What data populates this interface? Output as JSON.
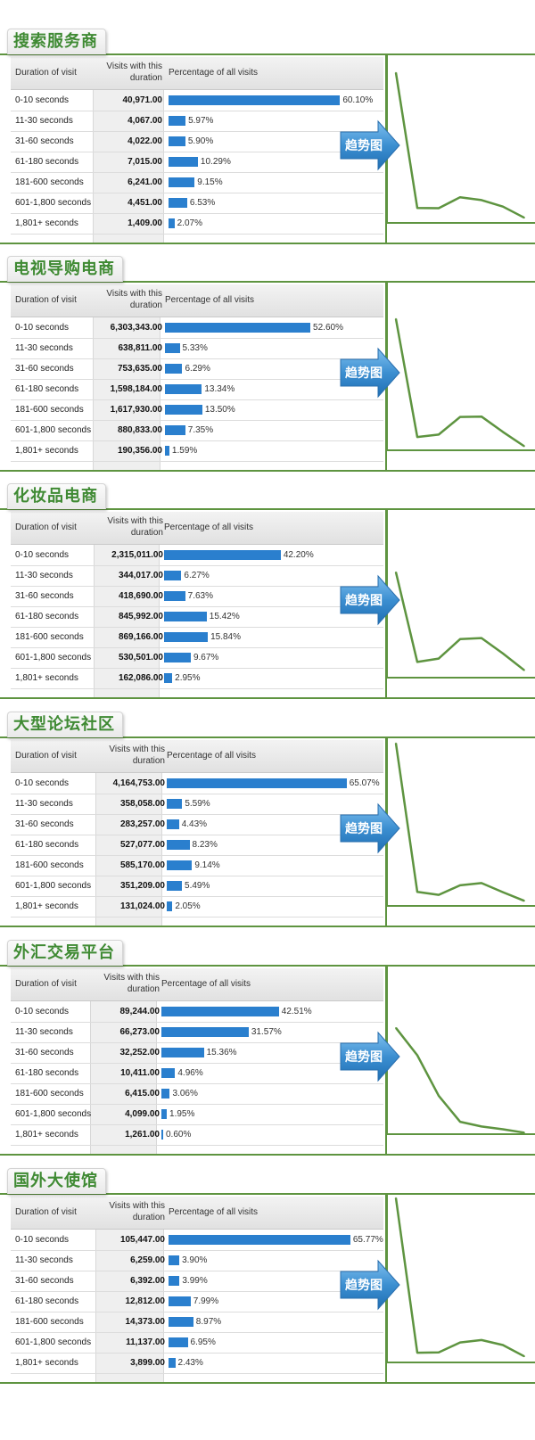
{
  "header_labels": {
    "duration": "Duration of visit",
    "visits_line1": "Visits with this",
    "visits_line2": "duration",
    "percentage": "Percentage of all visits"
  },
  "trend_label": "趋势图",
  "colors": {
    "bar": "#2a7fce",
    "line": "#5e9440",
    "title": "#3f8a33",
    "arrow": "#3c8fd1"
  },
  "chart_data": [
    {
      "type": "bar",
      "title": "搜索服务商",
      "categories": [
        "0-10 seconds",
        "11-30 seconds",
        "31-60 seconds",
        "61-180 seconds",
        "181-600 seconds",
        "601-1,800 seconds",
        "1,801+ seconds"
      ],
      "visits": [
        "40,971.00",
        "4,067.00",
        "4,022.00",
        "7,015.00",
        "6,241.00",
        "4,451.00",
        "1,409.00"
      ],
      "percent": [
        60.1,
        5.97,
        5.9,
        10.29,
        9.15,
        6.53,
        2.07
      ],
      "percent_labels": [
        "60.10%",
        "5.97%",
        "5.90%",
        "10.29%",
        "9.15%",
        "6.53%",
        "2.07%"
      ]
    },
    {
      "type": "bar",
      "title": "电视导购电商",
      "categories": [
        "0-10 seconds",
        "11-30 seconds",
        "31-60 seconds",
        "61-180 seconds",
        "181-600 seconds",
        "601-1,800 seconds",
        "1,801+ seconds"
      ],
      "visits": [
        "6,303,343.00",
        "638,811.00",
        "753,635.00",
        "1,598,184.00",
        "1,617,930.00",
        "880,833.00",
        "190,356.00"
      ],
      "percent": [
        52.6,
        5.33,
        6.29,
        13.34,
        13.5,
        7.35,
        1.59
      ],
      "percent_labels": [
        "52.60%",
        "5.33%",
        "6.29%",
        "13.34%",
        "13.50%",
        "7.35%",
        "1.59%"
      ]
    },
    {
      "type": "bar",
      "title": "化妆品电商",
      "categories": [
        "0-10 seconds",
        "11-30 seconds",
        "31-60 seconds",
        "61-180 seconds",
        "181-600 seconds",
        "601-1,800 seconds",
        "1,801+ seconds"
      ],
      "visits": [
        "2,315,011.00",
        "344,017.00",
        "418,690.00",
        "845,992.00",
        "869,166.00",
        "530,501.00",
        "162,086.00"
      ],
      "percent": [
        42.2,
        6.27,
        7.63,
        15.42,
        15.84,
        9.67,
        2.95
      ],
      "percent_labels": [
        "42.20%",
        "6.27%",
        "7.63%",
        "15.42%",
        "15.84%",
        "9.67%",
        "2.95%"
      ]
    },
    {
      "type": "bar",
      "title": "大型论坛社区",
      "categories": [
        "0-10 seconds",
        "11-30 seconds",
        "31-60 seconds",
        "61-180 seconds",
        "181-600 seconds",
        "601-1,800 seconds",
        "1,801+ seconds"
      ],
      "visits": [
        "4,164,753.00",
        "358,058.00",
        "283,257.00",
        "527,077.00",
        "585,170.00",
        "351,209.00",
        "131,024.00"
      ],
      "percent": [
        65.07,
        5.59,
        4.43,
        8.23,
        9.14,
        5.49,
        2.05
      ],
      "percent_labels": [
        "65.07%",
        "5.59%",
        "4.43%",
        "8.23%",
        "9.14%",
        "5.49%",
        "2.05%"
      ]
    },
    {
      "type": "bar",
      "title": "外汇交易平台",
      "categories": [
        "0-10 seconds",
        "11-30 seconds",
        "31-60 seconds",
        "61-180 seconds",
        "181-600 seconds",
        "601-1,800 seconds",
        "1,801+ seconds"
      ],
      "visits": [
        "89,244.00",
        "66,273.00",
        "32,252.00",
        "10,411.00",
        "6,415.00",
        "4,099.00",
        "1,261.00"
      ],
      "percent": [
        42.51,
        31.57,
        15.36,
        4.96,
        3.06,
        1.95,
        0.6
      ],
      "percent_labels": [
        "42.51%",
        "31.57%",
        "15.36%",
        "4.96%",
        "3.06%",
        "1.95%",
        "0.60%"
      ]
    },
    {
      "type": "bar",
      "title": "国外大使馆",
      "categories": [
        "0-10 seconds",
        "11-30 seconds",
        "31-60 seconds",
        "61-180 seconds",
        "181-600 seconds",
        "601-1,800 seconds",
        "1,801+ seconds"
      ],
      "visits": [
        "105,447.00",
        "6,259.00",
        "6,392.00",
        "12,812.00",
        "14,373.00",
        "11,137.00",
        "3,899.00"
      ],
      "percent": [
        65.77,
        3.9,
        3.99,
        7.99,
        8.97,
        6.95,
        2.43
      ],
      "percent_labels": [
        "65.77%",
        "3.90%",
        "3.99%",
        "7.99%",
        "8.97%",
        "6.95%",
        "2.43%"
      ]
    }
  ]
}
